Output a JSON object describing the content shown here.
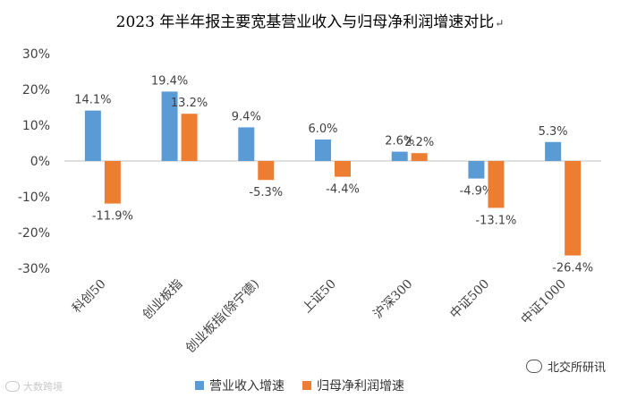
{
  "title": "2023 年半年报主要宽基营业收入与归母净利润增速对比",
  "title_mark": "↵",
  "colors": {
    "revenue": "#5B9BD5",
    "profit": "#ED7D31",
    "axis": "#BFBFBF",
    "text": "#404040"
  },
  "watermark_left": "大数跨境",
  "watermark_right": "北交所研讯",
  "watermark_right_icon": "wechat-icon",
  "chart_data": {
    "type": "bar",
    "categories": [
      "科创50",
      "创业板指",
      "创业板指(除宁德)",
      "上证50",
      "沪深300",
      "中证500",
      "中证1000"
    ],
    "series": [
      {
        "name": "营业收入增速",
        "values": [
          14.1,
          19.4,
          9.4,
          6.0,
          2.6,
          -4.9,
          5.3
        ],
        "labels": [
          "14.1%",
          "19.4%",
          "9.4%",
          "6.0%",
          "2.6%",
          "-4.9%",
          "5.3%"
        ]
      },
      {
        "name": "归母净利润增速",
        "values": [
          -11.9,
          13.2,
          -5.3,
          -4.4,
          2.2,
          -13.1,
          -26.4
        ],
        "labels": [
          "-11.9%",
          "13.2%",
          "-5.3%",
          "-4.4%",
          "2.2%",
          "-13.1%",
          "-26.4%"
        ]
      }
    ],
    "ylim": [
      -30,
      30
    ],
    "yticks": [
      30,
      20,
      10,
      0,
      -10,
      -20,
      -30
    ],
    "ytick_labels": [
      "30%",
      "20%",
      "10%",
      "0%",
      "-10%",
      "-20%",
      "-30%"
    ],
    "grid": false,
    "legend": "bottom"
  }
}
